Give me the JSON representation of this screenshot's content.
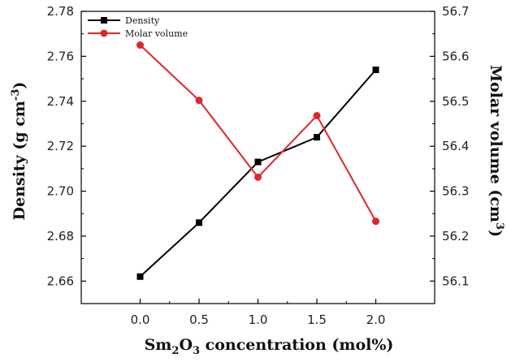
{
  "chart_data": {
    "type": "line",
    "x": [
      0.0,
      0.5,
      1.0,
      1.5,
      2.0
    ],
    "x_tick_labels": [
      "0.0",
      "0.5",
      "1.0",
      "1.5",
      "2.0"
    ],
    "xlim": [
      -0.5,
      2.5
    ],
    "xlabel_parts": {
      "pre": "Sm",
      "sub1": "2",
      "mid": "O",
      "sub2": "3",
      "post": " concentration (mol%)"
    },
    "y_left": {
      "label_parts": {
        "pre": "Density (g cm",
        "sup": "-3",
        "post": ")"
      },
      "ylim": [
        2.65,
        2.78
      ],
      "ticks": [
        2.66,
        2.68,
        2.7,
        2.72,
        2.74,
        2.76,
        2.78
      ],
      "tick_labels": [
        "2.66",
        "2.68",
        "2.70",
        "2.72",
        "2.74",
        "2.76",
        "2.78"
      ]
    },
    "y_right": {
      "label_parts": {
        "pre": "Molar volume (cm",
        "sup": "3",
        "post": ")"
      },
      "ylim": [
        56.05,
        56.7
      ],
      "ticks": [
        56.1,
        56.2,
        56.3,
        56.4,
        56.5,
        56.6,
        56.7
      ],
      "tick_labels": [
        "56.1",
        "56.2",
        "56.3",
        "56.4",
        "56.5",
        "56.6",
        "56.7"
      ]
    },
    "series": [
      {
        "name": "Density",
        "axis": "left",
        "values": [
          2.662,
          2.686,
          2.713,
          2.724,
          2.754
        ],
        "color": "#000000",
        "marker": "square"
      },
      {
        "name": "Molar volume",
        "axis": "right",
        "values": [
          56.625,
          56.502,
          56.331,
          56.468,
          56.233
        ],
        "color": "#e0262a",
        "marker": "circle"
      }
    ],
    "legend_position": "top-left",
    "grid": false
  }
}
